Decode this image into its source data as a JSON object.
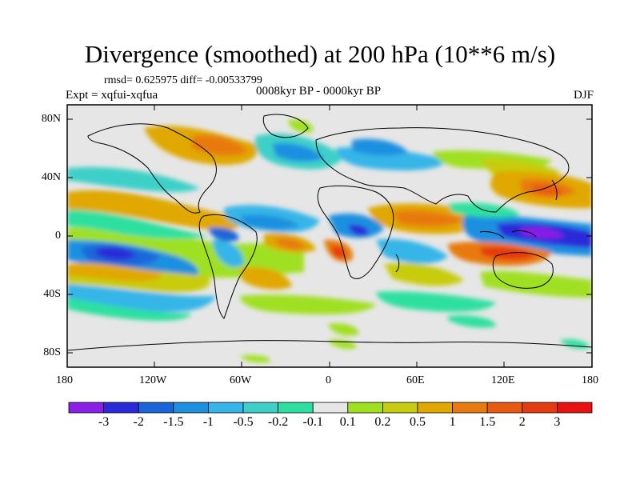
{
  "title": "Divergence (smoothed) at 200 hPa (10**6 m/s)",
  "stats": "rmsd= 0.625975 diff= -0.00533799",
  "experiment": "Expt = xqfui-xqfua",
  "period": "0008kyr BP - 0000kyr BP",
  "season": "DJF",
  "x_ticks": [
    "180",
    "120W",
    "60W",
    "0",
    "60E",
    "120E",
    "180"
  ],
  "y_ticks": [
    "80N",
    "40N",
    "0",
    "40S",
    "80S"
  ],
  "colorbar": {
    "labels": [
      "-3",
      "-2",
      "-1.5",
      "-1",
      "-0.5",
      "-0.2",
      "-0.1",
      "0.1",
      "0.2",
      "0.5",
      "1",
      "1.5",
      "2",
      "3"
    ],
    "colors": [
      "#8a1fe6",
      "#2a2ad9",
      "#1a66d9",
      "#1e90e0",
      "#35b5e8",
      "#3ed0c8",
      "#2ee0a0",
      "#e6e6e6",
      "#a0e020",
      "#c8cc10",
      "#e0a800",
      "#e87a10",
      "#e85a10",
      "#e63a10",
      "#e81010"
    ]
  },
  "colors": {
    "background_field": "#e6e6e6",
    "coastline": "#000000"
  }
}
